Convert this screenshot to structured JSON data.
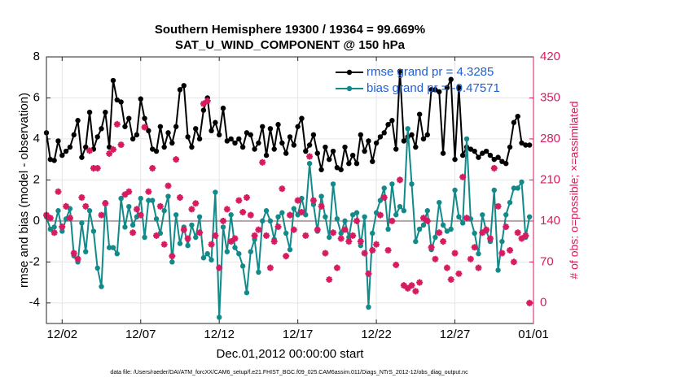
{
  "chart_data": {
    "type": "line",
    "title": "Southern Hemisphere 19300 / 19364 = 99.669%",
    "subtitle": "SAT_U_WIND_COMPONENT @ 150 hPa",
    "xlabel": "Dec.01,2012 00:00:00 start",
    "ylabel": "rmse and bias (model - observation)",
    "y2label": "# of obs: o=possible; ×=assimilated",
    "footnote": "data file: /Users/raeder/DAI/ATM_forcXX/CAM6_setup/f.e21.FHIST_BGC.f09_025.CAM6assim.011/Diags_NTrS_2012-12/obs_diag_output.nc",
    "x": [
      0,
      0.25,
      0.5,
      0.75,
      1,
      1.25,
      1.5,
      1.75,
      2,
      2.25,
      2.5,
      2.75,
      3,
      3.25,
      3.5,
      3.75,
      4,
      4.25,
      4.5,
      4.75,
      5,
      5.25,
      5.5,
      5.75,
      6,
      6.25,
      6.5,
      6.75,
      7,
      7.25,
      7.5,
      7.75,
      8,
      8.25,
      8.5,
      8.75,
      9,
      9.25,
      9.5,
      9.75,
      10,
      10.25,
      10.5,
      10.75,
      11,
      11.25,
      11.5,
      11.75,
      12,
      12.25,
      12.5,
      12.75,
      13,
      13.25,
      13.5,
      13.75,
      14,
      14.25,
      14.5,
      14.75,
      15,
      15.25,
      15.5,
      15.75,
      16,
      16.25,
      16.5,
      16.75,
      17,
      17.25,
      17.5,
      17.75,
      18,
      18.25,
      18.5,
      18.75,
      19,
      19.25,
      19.5,
      19.75,
      20,
      20.25,
      20.5,
      20.75,
      21,
      21.25,
      21.5,
      21.75,
      22,
      22.25,
      22.5,
      22.75,
      23,
      23.25,
      23.5,
      23.75,
      24,
      24.25,
      24.5,
      24.75,
      25,
      25.25,
      25.5,
      25.75,
      26,
      26.25,
      26.5,
      26.75,
      27,
      27.25,
      27.5,
      27.75,
      28,
      28.25,
      28.5,
      28.75,
      29,
      29.25,
      29.5,
      29.75,
      30,
      30.25,
      30.5,
      30.75
    ],
    "series": [
      {
        "name": "rmse grand pr = 4.3285",
        "color": "#000000",
        "marker": "circle",
        "values": [
          4.3,
          3.0,
          2.95,
          3.9,
          3.2,
          3.4,
          3.6,
          4.2,
          4.9,
          3.1,
          3.6,
          5.3,
          3.5,
          4.1,
          4.5,
          5.3,
          3.6,
          6.85,
          5.9,
          5.8,
          4.6,
          5.0,
          4.0,
          4.2,
          5.95,
          5.0,
          4.4,
          3.5,
          3.4,
          4.6,
          3.6,
          4.3,
          3.8,
          4.6,
          6.4,
          6.6,
          4.1,
          3.6,
          4.5,
          4.0,
          5.4,
          6.0,
          4.4,
          4.8,
          4.2,
          5.5,
          3.9,
          4.0,
          3.8,
          4.0,
          3.6,
          4.3,
          4.2,
          3.5,
          3.8,
          4.6,
          3.2,
          4.5,
          3.5,
          4.7,
          3.8,
          3.3,
          4.1,
          3.7,
          4.6,
          5.0,
          3.4,
          3.7,
          4.2,
          3.3,
          2.5,
          3.6,
          3.0,
          3.4,
          2.6,
          2.5,
          3.6,
          2.8,
          3.2,
          2.8,
          4.2,
          3.4,
          3.9,
          2.9,
          3.8,
          4.1,
          4.3,
          4.7,
          4.9,
          3.5,
          7.3,
          3.9,
          4.1,
          4.2,
          3.6,
          5.2,
          4.0,
          4.2,
          6.4,
          6.4,
          6.3,
          3.3,
          6.5,
          6.9,
          3.0,
          6.5,
          3.2,
          3.6,
          3.5,
          3.4,
          3.1,
          3.3,
          3.4,
          3.2,
          3.0,
          3.1,
          2.9,
          2.8,
          3.6,
          4.8,
          5.1,
          3.8,
          3.7,
          3.7
        ]
      },
      {
        "name": "bias grand pr = -0.47571",
        "color": "#138a8a",
        "marker": "circle",
        "values": [
          0.2,
          -0.4,
          -0.3,
          0.5,
          -0.5,
          0.1,
          0.6,
          -1.7,
          -2.0,
          -0.1,
          -1.5,
          0.5,
          -0.5,
          -2.3,
          -3.2,
          0.9,
          -1.3,
          -1.3,
          -1.6,
          1.1,
          -0.3,
          0.7,
          -0.2,
          0.2,
          1.1,
          -0.8,
          1.0,
          1.0,
          0.1,
          -0.6,
          0.5,
          1.2,
          -2.0,
          0.3,
          -1.1,
          -0.3,
          -1.2,
          -0.2,
          -0.8,
          0.2,
          -1.8,
          -1.6,
          -1.9,
          1.4,
          -4.7,
          -0.3,
          -1.5,
          0.3,
          -1.3,
          -1.6,
          -2.2,
          -3.5,
          -1.5,
          -0.9,
          -2.5,
          0.0,
          0.5,
          0.0,
          -0.9,
          0.2,
          0.4,
          -0.6,
          -1.4,
          0.6,
          0.3,
          1.1,
          0.3,
          2.8,
          0.8,
          -0.5,
          1.2,
          0.2,
          -0.8,
          1.8,
          0.1,
          -0.6,
          0.0,
          -0.8,
          0.3,
          0.4,
          -1.2,
          0.2,
          -4.2,
          -0.6,
          0.4,
          1.0,
          1.6,
          -0.4,
          1.8,
          0.3,
          0.7,
          0.5,
          4.5,
          1.8,
          -1.0,
          -0.4,
          -0.2,
          0.5,
          -1.4,
          -0.8,
          0.9,
          -0.2,
          -0.5,
          -0.4,
          1.5,
          0.2,
          -0.1,
          4.0,
          0.1,
          -0.6,
          -1.6,
          0.3,
          -0.5,
          -1.0,
          1.5,
          -2.4,
          -1.0,
          0.3,
          0.9,
          1.6,
          1.6,
          1.9,
          -0.8,
          0.2
        ]
      },
      {
        "color": "#d81b60",
        "marker": "star",
        "axis": "y2",
        "values": [
          150,
          145,
          120,
          190,
          130,
          165,
          145,
          85,
          75,
          180,
          165,
          260,
          230,
          230,
          150,
          170,
          255,
          262,
          305,
          270,
          185,
          190,
          120,
          160,
          150,
          300,
          190,
          230,
          115,
          165,
          100,
          200,
          80,
          245,
          180,
          125,
          110,
          160,
          170,
          120,
          340,
          345,
          100,
          115,
          60,
          140,
          160,
          105,
          110,
          175,
          155,
          180,
          150,
          115,
          125,
          240,
          115,
          60,
          105,
          130,
          195,
          80,
          150,
          125,
          175,
          155,
          115,
          250,
          175,
          125,
          165,
          85,
          40,
          120,
          60,
          110,
          125,
          105,
          115,
          140,
          105,
          85,
          50,
          90,
          100,
          150,
          180,
          90,
          140,
          65,
          210,
          30,
          25,
          30,
          20,
          35,
          145,
          140,
          95,
          75,
          120,
          105,
          60,
          40,
          85,
          50,
          215,
          145,
          75,
          95,
          60,
          120,
          125,
          110,
          230,
          165,
          85,
          130,
          90,
          70,
          120,
          110,
          115,
          0
        ]
      }
    ],
    "xlim": [
      0,
      31
    ],
    "xticks": [
      {
        "value": 1,
        "label": "12/02"
      },
      {
        "value": 6,
        "label": "12/07"
      },
      {
        "value": 11,
        "label": "12/12"
      },
      {
        "value": 16,
        "label": "12/17"
      },
      {
        "value": 21,
        "label": "12/22"
      },
      {
        "value": 26,
        "label": "12/27"
      },
      {
        "value": 31,
        "label": "01/01"
      }
    ],
    "ylim": [
      -5,
      8
    ],
    "yticks": [
      -4,
      -2,
      0,
      2,
      4,
      6,
      8
    ],
    "y2lim": [
      -35,
      420
    ],
    "y2ticks": [
      0,
      70,
      140,
      210,
      280,
      350,
      420
    ],
    "y2color": "#d81b60",
    "legend": "northeast",
    "legend_color": "#1f5fd6",
    "grid": true
  }
}
